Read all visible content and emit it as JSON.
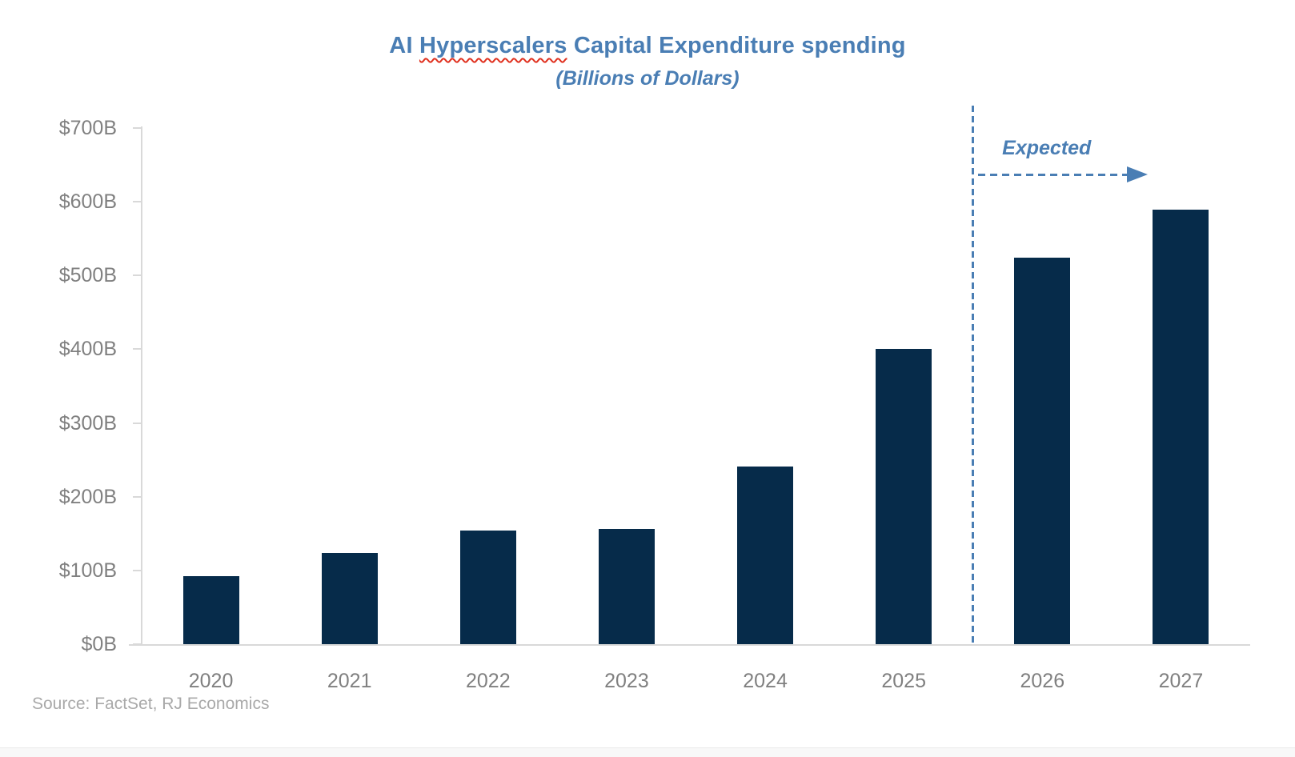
{
  "header": {
    "title_prefix": "AI ",
    "title_misspelled": "Hyperscalers",
    "title_suffix": " Capital Expenditure spending",
    "title_full": "AI Hyperscalers Capital Expenditure spending",
    "subtitle": "(Billions of Dollars)"
  },
  "annotation": {
    "label": "Expected"
  },
  "footer": {
    "source": "Source: FactSet, RJ Economics"
  },
  "colors": {
    "bar": "#062B4A",
    "accent": "#4A7EB4",
    "axis": "#D9D9D9",
    "tick_label": "#808080",
    "source_text": "#A9A9A9",
    "squiggle_red": "#E0301E"
  },
  "chart_data": {
    "type": "bar",
    "title": "AI Hyperscalers Capital Expenditure spending",
    "subtitle": "(Billions of Dollars)",
    "units": "Billions of Dollars",
    "xlabel": "",
    "ylabel": "",
    "categories": [
      "2020",
      "2021",
      "2022",
      "2023",
      "2024",
      "2025",
      "2026",
      "2027"
    ],
    "values": [
      92,
      124,
      154,
      156,
      241,
      400,
      524,
      589
    ],
    "ylim": [
      0,
      700
    ],
    "ytick_step": 100,
    "ytick_labels": [
      "$0B",
      "$100B",
      "$200B",
      "$300B",
      "$400B",
      "$500B",
      "$600B",
      "$700B"
    ],
    "grid": false,
    "legend": false,
    "bar_color": "#062B4A",
    "annotation": {
      "label": "Expected",
      "divider_after": "2025",
      "expected_categories": [
        "2026",
        "2027"
      ]
    },
    "source": "Source: FactSet, RJ Economics"
  }
}
